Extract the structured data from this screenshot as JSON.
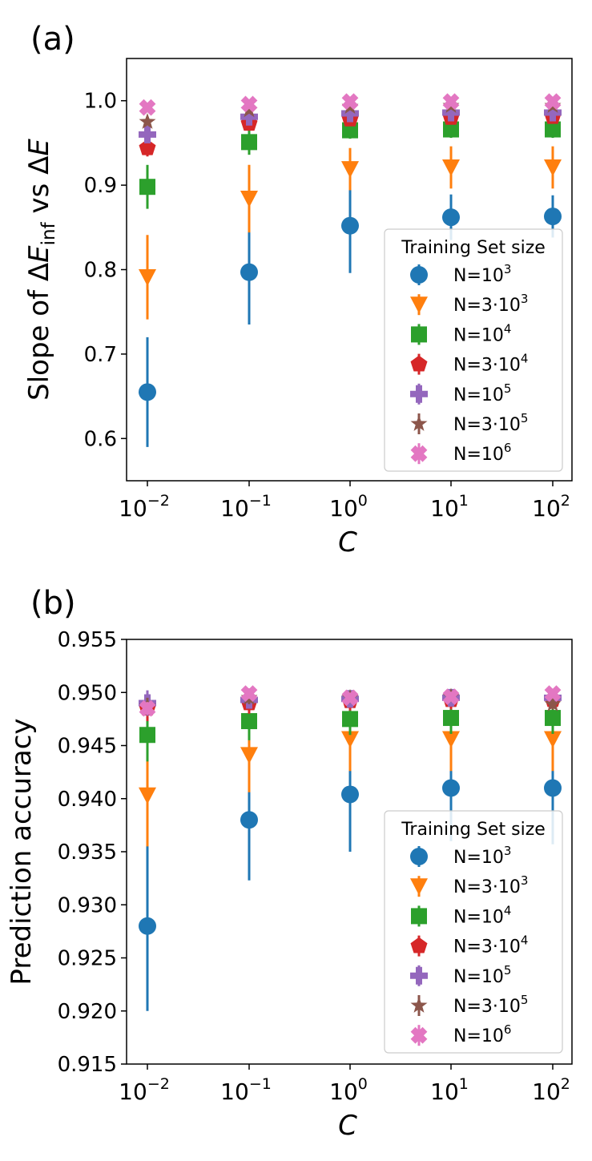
{
  "colors": {
    "N1e3": "#1f77b4",
    "N3e3": "#ff7f0e",
    "N1e4": "#2ca02c",
    "N3e4": "#d62728",
    "N1e5": "#9467bd",
    "N3e5": "#8c564b",
    "N1e6": "#e377c2"
  },
  "chart_data": [
    {
      "type": "scatter",
      "panel_label": "(a)",
      "xscale": "log",
      "x": [
        0.01,
        0.1,
        1,
        10,
        100
      ],
      "xtick_labels": [
        {
          "base": "10",
          "exp": "−2"
        },
        {
          "base": "10",
          "exp": "−1"
        },
        {
          "base": "10",
          "exp": "0"
        },
        {
          "base": "10",
          "exp": "1"
        },
        {
          "base": "10",
          "exp": "2"
        }
      ],
      "xlabel": "C",
      "ylabel": {
        "prefix": "Slope of Δ",
        "var1": "E",
        "sub": "inf",
        "mid": " vs Δ",
        "var2": "E"
      },
      "ylim": [
        0.55,
        1.05
      ],
      "yticks": [
        0.6,
        0.7,
        0.8,
        0.9,
        1.0
      ],
      "ytick_labels": [
        "0.6",
        "0.7",
        "0.8",
        "0.9",
        "1.0"
      ],
      "legend": {
        "title": "Training Set size",
        "position": "center-right"
      },
      "series": [
        {
          "key": "N1e3",
          "marker": "circle",
          "label_base": "N=10",
          "label_exp": "3",
          "values": [
            0.655,
            0.797,
            0.852,
            0.862,
            0.863
          ],
          "errors": [
            0.065,
            0.062,
            0.056,
            0.027,
            0.025
          ]
        },
        {
          "key": "N3e3",
          "marker": "triangle-down",
          "label_base": "N=3·10",
          "label_exp": "3",
          "values": [
            0.791,
            0.884,
            0.919,
            0.921,
            0.921
          ],
          "errors": [
            0.05,
            0.04,
            0.025,
            0.025,
            0.025
          ]
        },
        {
          "key": "N1e4",
          "marker": "square",
          "label_base": "N=10",
          "label_exp": "4",
          "values": [
            0.898,
            0.951,
            0.965,
            0.966,
            0.966
          ],
          "errors": [
            0.026,
            0.015,
            0.01,
            0.01,
            0.01
          ]
        },
        {
          "key": "N3e4",
          "marker": "pentagon",
          "label_base": "N=3·10",
          "label_exp": "4",
          "values": [
            0.944,
            0.973,
            0.978,
            0.98,
            0.981
          ],
          "errors": [
            0.01,
            0.007,
            0.005,
            0.005,
            0.005
          ]
        },
        {
          "key": "N1e5",
          "marker": "plus",
          "label_base": "N=10",
          "label_exp": "5",
          "values": [
            0.96,
            0.981,
            0.985,
            0.986,
            0.986
          ],
          "errors": [
            0.006,
            0.004,
            0.003,
            0.003,
            0.003
          ]
        },
        {
          "key": "N3e5",
          "marker": "star",
          "label_base": "N=3·10",
          "label_exp": "5",
          "values": [
            0.975,
            0.989,
            0.993,
            0.994,
            0.994
          ],
          "errors": [
            0.004,
            0.003,
            0.002,
            0.002,
            0.002
          ]
        },
        {
          "key": "N1e6",
          "marker": "x",
          "label_base": "N=10",
          "label_exp": "6",
          "values": [
            0.992,
            0.996,
            0.999,
            0.999,
            0.999
          ],
          "errors": [
            0.002,
            0.002,
            0.001,
            0.001,
            0.001
          ]
        }
      ]
    },
    {
      "type": "scatter",
      "panel_label": "(b)",
      "xscale": "log",
      "x": [
        0.01,
        0.1,
        1,
        10,
        100
      ],
      "xtick_labels": [
        {
          "base": "10",
          "exp": "−2"
        },
        {
          "base": "10",
          "exp": "−1"
        },
        {
          "base": "10",
          "exp": "0"
        },
        {
          "base": "10",
          "exp": "1"
        },
        {
          "base": "10",
          "exp": "2"
        }
      ],
      "xlabel": "C",
      "ylabel": {
        "text": "Prediction accuracy"
      },
      "ylim": [
        0.915,
        0.955
      ],
      "yticks": [
        0.915,
        0.92,
        0.925,
        0.93,
        0.935,
        0.94,
        0.945,
        0.95,
        0.955
      ],
      "ytick_labels": [
        "0.915",
        "0.920",
        "0.925",
        "0.930",
        "0.935",
        "0.940",
        "0.945",
        "0.950",
        "0.955"
      ],
      "legend": {
        "title": "Training Set size",
        "position": "lower-right"
      },
      "series": [
        {
          "key": "N1e3",
          "marker": "circle",
          "label_base": "N=10",
          "label_exp": "3",
          "values": [
            0.928,
            0.938,
            0.9404,
            0.941,
            0.941
          ],
          "errors": [
            0.008,
            0.0057,
            0.0054,
            0.005,
            0.0053
          ]
        },
        {
          "key": "N3e3",
          "marker": "triangle-down",
          "label_base": "N=3·10",
          "label_exp": "3",
          "values": [
            0.9403,
            0.9441,
            0.9456,
            0.9456,
            0.9456
          ],
          "errors": [
            0.0048,
            0.0035,
            0.003,
            0.003,
            0.003
          ]
        },
        {
          "key": "N1e4",
          "marker": "square",
          "label_base": "N=10",
          "label_exp": "4",
          "values": [
            0.946,
            0.9473,
            0.9475,
            0.9476,
            0.9476
          ],
          "errors": [
            0.0025,
            0.0018,
            0.0015,
            0.0015,
            0.0015
          ]
        },
        {
          "key": "N3e4",
          "marker": "pentagon",
          "label_base": "N=3·10",
          "label_exp": "4",
          "values": [
            0.9485,
            0.949,
            0.9492,
            0.9493,
            0.9493
          ],
          "errors": [
            0.0012,
            0.001,
            0.0009,
            0.0009,
            0.0009
          ]
        },
        {
          "key": "N1e5",
          "marker": "plus",
          "label_base": "N=10",
          "label_exp": "5",
          "values": [
            0.949,
            0.9493,
            0.9494,
            0.9495,
            0.9495
          ],
          "errors": [
            0.0012,
            0.0008,
            0.0007,
            0.0006,
            0.0006
          ]
        },
        {
          "key": "N3e5",
          "marker": "star",
          "label_base": "N=3·10",
          "label_exp": "5",
          "values": [
            0.9487,
            0.9495,
            0.9495,
            0.9496,
            0.9489
          ],
          "errors": [
            0.0008,
            0.0006,
            0.0005,
            0.0005,
            0.0005
          ]
        },
        {
          "key": "N1e6",
          "marker": "x",
          "label_base": "N=10",
          "label_exp": "6",
          "values": [
            0.9485,
            0.9499,
            0.9495,
            0.9496,
            0.9499
          ],
          "errors": [
            0.0006,
            0.0005,
            0.0004,
            0.0004,
            0.0004
          ]
        }
      ]
    }
  ]
}
